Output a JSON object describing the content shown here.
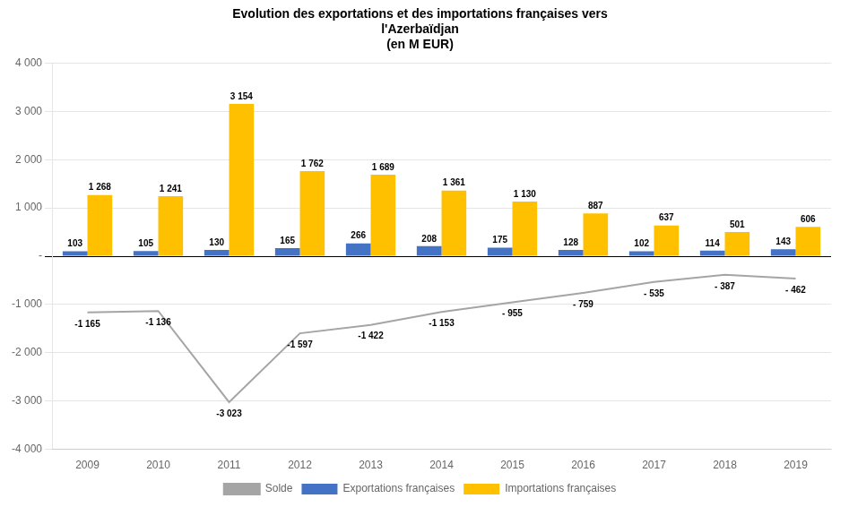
{
  "chart_data": {
    "type": "bar",
    "title": "Evolution des exportations et des importations françaises vers\nl'Azerbaïdjan\n(en M EUR)",
    "categories": [
      "2009",
      "2010",
      "2011",
      "2012",
      "2013",
      "2014",
      "2015",
      "2016",
      "2017",
      "2018",
      "2019"
    ],
    "series": [
      {
        "name": "Exportations françaises",
        "color": "#4472C4",
        "values": [
          103,
          105,
          130,
          165,
          266,
          208,
          175,
          128,
          102,
          114,
          143
        ],
        "value_labels": [
          "103",
          "105",
          "130",
          "165",
          "266",
          "208",
          "175",
          "128",
          "102",
          "114",
          "143"
        ]
      },
      {
        "name": "Importations françaises",
        "color": "#FFC000",
        "values": [
          1268,
          1241,
          3154,
          1762,
          1689,
          1361,
          1130,
          887,
          637,
          501,
          606
        ],
        "value_labels": [
          "1 268",
          "1 241",
          "3 154",
          "1 762",
          "1 689",
          "1 361",
          "1 130",
          "887",
          "637",
          "501",
          "606"
        ]
      },
      {
        "name": "Solde",
        "type": "line",
        "color": "#A5A5A5",
        "values": [
          -1165,
          -1136,
          -3023,
          -1597,
          -1422,
          -1153,
          -955,
          -759,
          -535,
          -387,
          -462
        ],
        "value_labels": [
          "-1 165",
          "-1 136",
          "-3 023",
          "-1 597",
          "-1 422",
          "-1 153",
          "- 955",
          "- 759",
          "- 535",
          "- 387",
          "- 462"
        ]
      }
    ],
    "ylim": [
      -4000,
      4000
    ],
    "yticks": [
      {
        "value": -4000,
        "label": "-4 000"
      },
      {
        "value": -3000,
        "label": "-3 000"
      },
      {
        "value": -2000,
        "label": "-2 000"
      },
      {
        "value": -1000,
        "label": "-1 000"
      },
      {
        "value": 0,
        "label": "-"
      },
      {
        "value": 1000,
        "label": "1 000"
      },
      {
        "value": 2000,
        "label": "2 000"
      },
      {
        "value": 3000,
        "label": "3 000"
      },
      {
        "value": 4000,
        "label": "4 000"
      }
    ],
    "grid": true,
    "legend": "bottom",
    "data_labels": true
  }
}
